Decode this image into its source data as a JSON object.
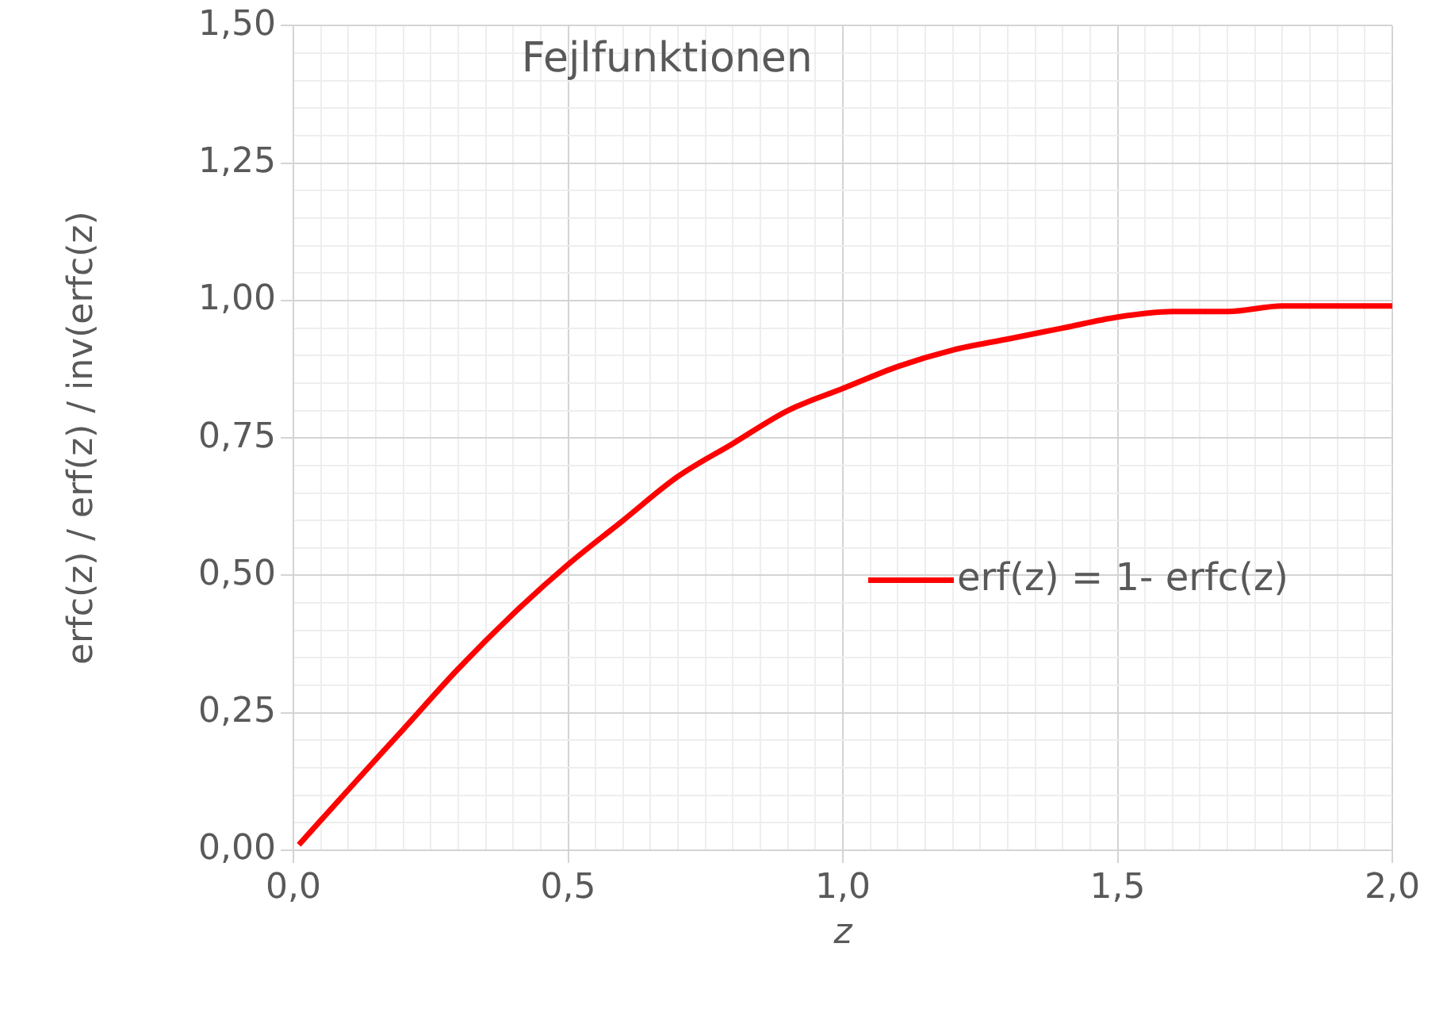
{
  "chart_data": {
    "type": "line",
    "title": "Fejlfunktionen",
    "xlabel": "z",
    "ylabel": "erfc(z) / erf(z) / inv(erfc(z)",
    "x": [
      0.01,
      0.1,
      0.2,
      0.3,
      0.4,
      0.5,
      0.6,
      0.7,
      0.8,
      0.9,
      1.0,
      1.1,
      1.2,
      1.3,
      1.4,
      1.5,
      1.6,
      1.7,
      1.8,
      1.9,
      2.0
    ],
    "series": [
      {
        "name": "erf(z) = 1- erfc(z)",
        "color": "#ff0000",
        "values": [
          0.01,
          0.11,
          0.22,
          0.33,
          0.43,
          0.52,
          0.6,
          0.68,
          0.74,
          0.8,
          0.84,
          0.88,
          0.91,
          0.93,
          0.95,
          0.97,
          0.98,
          0.98,
          0.99,
          0.99,
          0.99
        ]
      }
    ],
    "xlim": [
      0,
      2
    ],
    "ylim": [
      0,
      1.5
    ],
    "xticks": [
      {
        "value": 0,
        "label": "0,0"
      },
      {
        "value": 0.05,
        "label": null
      },
      {
        "value": 0.1,
        "label": null
      },
      {
        "value": 0.15,
        "label": null
      },
      {
        "value": 0.2,
        "label": null
      },
      {
        "value": 0.25,
        "label": null
      },
      {
        "value": 0.3,
        "label": null
      },
      {
        "value": 0.35,
        "label": null
      },
      {
        "value": 0.4,
        "label": null
      },
      {
        "value": 0.45,
        "label": null
      },
      {
        "value": 0.5,
        "label": "0,5"
      },
      {
        "value": 0.55,
        "label": null
      },
      {
        "value": 0.6,
        "label": null
      },
      {
        "value": 0.65,
        "label": null
      },
      {
        "value": 0.7,
        "label": null
      },
      {
        "value": 0.75,
        "label": null
      },
      {
        "value": 0.8,
        "label": null
      },
      {
        "value": 0.85,
        "label": null
      },
      {
        "value": 0.9,
        "label": null
      },
      {
        "value": 0.95,
        "label": null
      },
      {
        "value": 1,
        "label": "1,0"
      },
      {
        "value": 1.05,
        "label": null
      },
      {
        "value": 1.1,
        "label": null
      },
      {
        "value": 1.15,
        "label": null
      },
      {
        "value": 1.2,
        "label": null
      },
      {
        "value": 1.25,
        "label": null
      },
      {
        "value": 1.3,
        "label": null
      },
      {
        "value": 1.35,
        "label": null
      },
      {
        "value": 1.4,
        "label": null
      },
      {
        "value": 1.45,
        "label": null
      },
      {
        "value": 1.5,
        "label": "1,5"
      },
      {
        "value": 1.55,
        "label": null
      },
      {
        "value": 1.6,
        "label": null
      },
      {
        "value": 1.65,
        "label": null
      },
      {
        "value": 1.7,
        "label": null
      },
      {
        "value": 1.75,
        "label": null
      },
      {
        "value": 1.8,
        "label": null
      },
      {
        "value": 1.85,
        "label": null
      },
      {
        "value": 1.9,
        "label": null
      },
      {
        "value": 1.95,
        "label": null
      },
      {
        "value": 2,
        "label": "2,0"
      }
    ],
    "yticks": [
      {
        "value": 0,
        "label": "0,00"
      },
      {
        "value": 0.05,
        "label": null
      },
      {
        "value": 0.1,
        "label": null
      },
      {
        "value": 0.15,
        "label": null
      },
      {
        "value": 0.2,
        "label": null
      },
      {
        "value": 0.25,
        "label": "0,25"
      },
      {
        "value": 0.3,
        "label": null
      },
      {
        "value": 0.35,
        "label": null
      },
      {
        "value": 0.4,
        "label": null
      },
      {
        "value": 0.45,
        "label": null
      },
      {
        "value": 0.5,
        "label": "0,50"
      },
      {
        "value": 0.55,
        "label": null
      },
      {
        "value": 0.6,
        "label": null
      },
      {
        "value": 0.65,
        "label": null
      },
      {
        "value": 0.7,
        "label": null
      },
      {
        "value": 0.75,
        "label": "0,75"
      },
      {
        "value": 0.8,
        "label": null
      },
      {
        "value": 0.85,
        "label": null
      },
      {
        "value": 0.9,
        "label": null
      },
      {
        "value": 0.95,
        "label": null
      },
      {
        "value": 1,
        "label": "1,00"
      },
      {
        "value": 1.05,
        "label": null
      },
      {
        "value": 1.1,
        "label": null
      },
      {
        "value": 1.15,
        "label": null
      },
      {
        "value": 1.2,
        "label": null
      },
      {
        "value": 1.25,
        "label": "1,25"
      },
      {
        "value": 1.3,
        "label": null
      },
      {
        "value": 1.35,
        "label": null
      },
      {
        "value": 1.4,
        "label": null
      },
      {
        "value": 1.45,
        "label": null
      },
      {
        "value": 1.5,
        "label": "1,50"
      }
    ],
    "grid": true,
    "legend": "right",
    "marker": "none",
    "line_style": "solid"
  }
}
